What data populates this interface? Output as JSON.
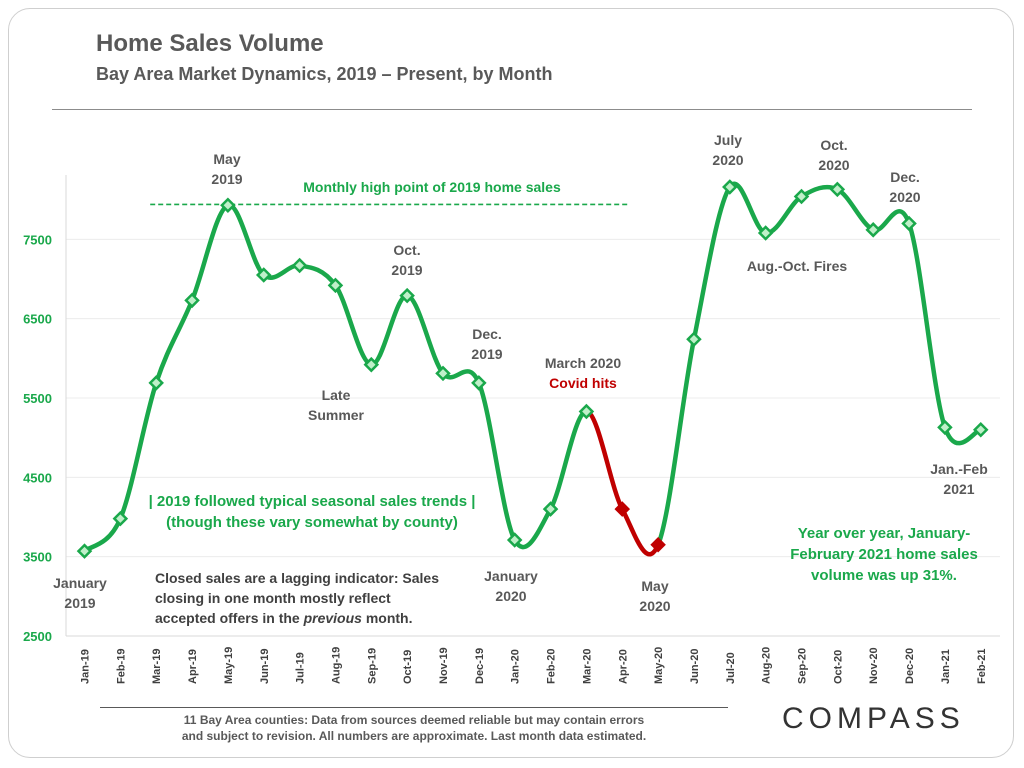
{
  "header": {
    "title": "Home Sales Volume",
    "subtitle": "Bay Area Market Dynamics, 2019 – Present, by Month"
  },
  "colors": {
    "series": "#1aa84b",
    "covid_segment": "#c00000",
    "axis_text": "#1aa84b",
    "label_gray": "#595959"
  },
  "chart_data": {
    "type": "line",
    "categories": [
      "Jan-19",
      "Feb-19",
      "Mar-19",
      "Apr-19",
      "May-19",
      "Jun-19",
      "Jul-19",
      "Aug-19",
      "Sep-19",
      "Oct-19",
      "Nov-19",
      "Dec-19",
      "Jan-20",
      "Feb-20",
      "Mar-20",
      "Apr-20",
      "May-20",
      "Jun-20",
      "Jul-20",
      "Aug-20",
      "Sep-20",
      "Oct-20",
      "Nov-20",
      "Dec-20",
      "Jan-21",
      "Feb-21"
    ],
    "values": [
      3570,
      3980,
      5690,
      6730,
      7930,
      7050,
      7170,
      6920,
      5920,
      6790,
      5810,
      5690,
      3710,
      4100,
      5330,
      4100,
      3650,
      6240,
      8160,
      7580,
      8040,
      8130,
      7620,
      7700,
      5130,
      5100
    ],
    "covid_highlight_range": [
      "Mar-20",
      "May-20"
    ],
    "ylim": [
      2500,
      8500
    ],
    "yticks": [
      2500,
      3500,
      4500,
      5500,
      6500,
      7500
    ],
    "reference_line": {
      "value": 7940,
      "from": "Mar-19",
      "to": "Apr-20",
      "label": "Monthly high point of 2019 home sales"
    },
    "grid": true,
    "annotations": [
      {
        "id": "jan2019",
        "lines": [
          "January",
          "2019"
        ],
        "color": "gray"
      },
      {
        "id": "may2019",
        "lines": [
          "May",
          "2019"
        ],
        "color": "gray"
      },
      {
        "id": "late_summer",
        "lines": [
          "Late",
          "Summer"
        ],
        "color": "gray"
      },
      {
        "id": "oct2019",
        "lines": [
          "Oct.",
          "2019"
        ],
        "color": "gray"
      },
      {
        "id": "dec2019",
        "lines": [
          "Dec.",
          "2019"
        ],
        "color": "gray"
      },
      {
        "id": "jan2020",
        "lines": [
          "January",
          "2020"
        ],
        "color": "gray"
      },
      {
        "id": "mar2020",
        "lines": [
          "March 2020"
        ],
        "color": "gray"
      },
      {
        "id": "covid",
        "lines": [
          "Covid hits"
        ],
        "color": "red"
      },
      {
        "id": "may2020",
        "lines": [
          "May",
          "2020"
        ],
        "color": "gray"
      },
      {
        "id": "jul2020",
        "lines": [
          "July",
          "2020"
        ],
        "color": "gray"
      },
      {
        "id": "oct2020",
        "lines": [
          "Oct.",
          "2020"
        ],
        "color": "gray"
      },
      {
        "id": "dec2020",
        "lines": [
          "Dec.",
          "2020"
        ],
        "color": "gray"
      },
      {
        "id": "fires",
        "lines": [
          "Aug.-Oct. Fires"
        ],
        "color": "gray"
      },
      {
        "id": "janfeb2021",
        "lines": [
          "Jan.-Feb",
          "2021"
        ],
        "color": "gray"
      },
      {
        "id": "seasonal",
        "lines": [
          "| 2019 followed typical seasonal sales trends |",
          "(though these vary somewhat by county)"
        ],
        "color": "green"
      },
      {
        "id": "yoy",
        "lines": [
          "Year over year, January-",
          "February 2021 home sales",
          "volume was up 31%."
        ],
        "color": "green"
      }
    ],
    "note": [
      "Closed sales are a lagging indicator: Sales",
      "closing in one month mostly reflect",
      "accepted offers in the ",
      "previous",
      " month."
    ]
  },
  "footer": {
    "lines": [
      "11 Bay Area counties: Data from sources deemed reliable but may contain errors",
      "and subject to revision. All numbers are approximate. Last month data estimated."
    ],
    "logo": "COMPASS"
  }
}
